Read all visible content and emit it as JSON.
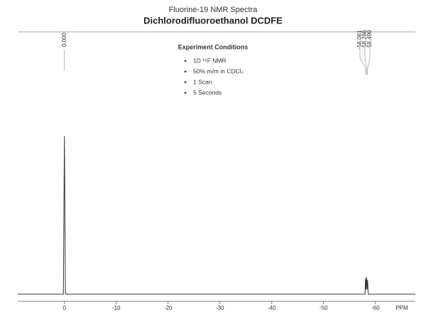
{
  "chart_data": {
    "type": "line",
    "title": "Fluorine-19 NMR Spectra",
    "subtitle": "Dichlorodifluoroethanol DCDFE",
    "x_label": "PPM",
    "x": [
      9,
      0.2,
      0,
      -0.2,
      -58.0,
      -58.081,
      -58.18,
      -58.286,
      -58.39,
      -58.49,
      -58.6,
      -67.7
    ],
    "series": [
      {
        "color": "#333333",
        "values": [
          0,
          0,
          100,
          0,
          0,
          10,
          3,
          11,
          3,
          9,
          0,
          0
        ]
      }
    ],
    "xlim": [
      9,
      -67.7
    ],
    "ylim": [
      0,
      100
    ],
    "xticks": [
      0,
      -10,
      -20,
      -30,
      -40,
      -50,
      -60
    ],
    "peak_labels": [
      {
        "value": 0,
        "label": "0.000"
      },
      {
        "value": -58.081,
        "label": "-58.081"
      },
      {
        "value": -58.286,
        "label": "-58.286"
      },
      {
        "value": -58.49,
        "label": "-58.490"
      }
    ],
    "annotation": {
      "title": "Experiment Conditions",
      "items": [
        "1D ¹⁹F NMR",
        "50% m/m in CDCl₃",
        "1 Scan",
        "5 Seconds"
      ]
    }
  }
}
